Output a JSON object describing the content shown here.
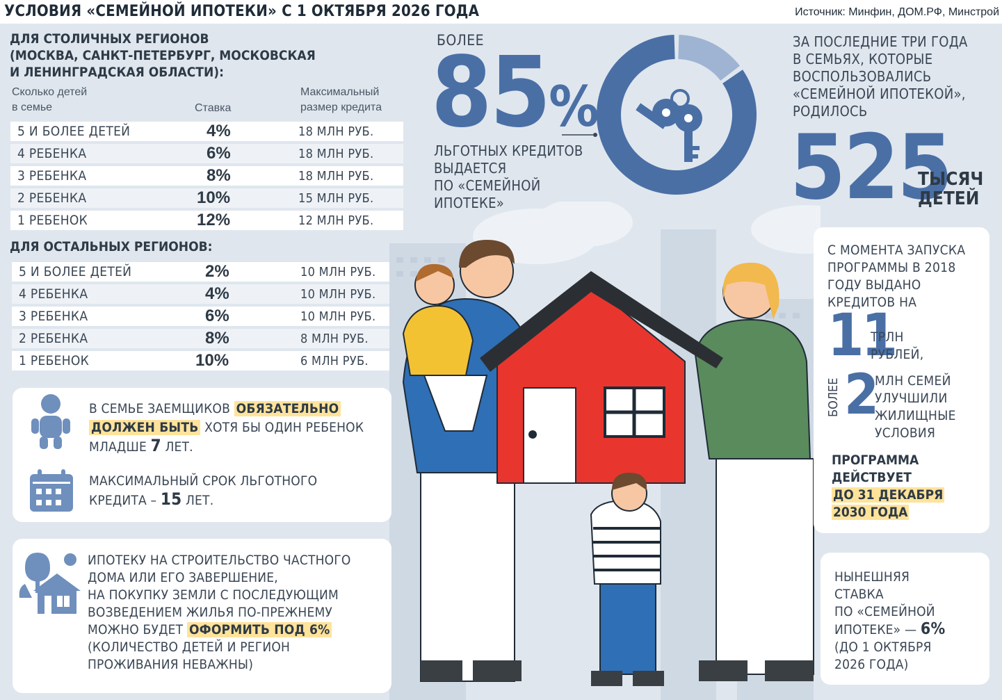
{
  "header": {
    "title": "УСЛОВИЯ «СЕМЕЙНОЙ ИПОТЕКИ» С 1 ОКТЯБРЯ 2026 ГОДА",
    "source": "Источник: Минфин, ДОМ.РФ, Минстрой"
  },
  "capital": {
    "title": "ДЛЯ СТОЛИЧНЫХ РЕГИОНОВ\n(МОСКВА, САНКТ-ПЕТЕРБУРГ, МОСКОВСКАЯ\nИ ЛЕНИНГРАДСКАЯ ОБЛАСТИ):",
    "col_kids": "Сколько детей\nв семье",
    "col_rate": "Ставка",
    "col_amount": "Максимальный\nразмер кредита",
    "rows": [
      {
        "kids": "5 И БОЛЕЕ ДЕТЕЙ",
        "rate": "4%",
        "amount": "18 МЛН РУБ."
      },
      {
        "kids": "4 РЕБЕНКА",
        "rate": "6%",
        "amount": "18 МЛН РУБ."
      },
      {
        "kids": "3 РЕБЕНКА",
        "rate": "8%",
        "amount": "18 МЛН РУБ."
      },
      {
        "kids": "2 РЕБЕНКА",
        "rate": "10%",
        "amount": "15 МЛН РУБ."
      },
      {
        "kids": "1 РЕБЕНОК",
        "rate": "12%",
        "amount": "12 МЛН РУБ."
      }
    ]
  },
  "other": {
    "title": "ДЛЯ ОСТАЛЬНЫХ РЕГИОНОВ:",
    "rows": [
      {
        "kids": "5 И БОЛЕЕ ДЕТЕЙ",
        "rate": "2%",
        "amount": "10 МЛН РУБ."
      },
      {
        "kids": "4 РЕБЕНКА",
        "rate": "4%",
        "amount": "10 МЛН РУБ."
      },
      {
        "kids": "3 РЕБЕНКА",
        "rate": "6%",
        "amount": "10 МЛН РУБ."
      },
      {
        "kids": "2 РЕБЕНКА",
        "rate": "8%",
        "amount": "8 МЛН РУБ."
      },
      {
        "kids": "1 РЕБЕНОК",
        "rate": "10%",
        "amount": "6 МЛН РУБ."
      }
    ]
  },
  "card_child": {
    "icon": "baby-icon",
    "t1": "В СЕМЬЕ ЗАЕМЩИКОВ ",
    "hl1": "ОБЯЗАТЕЛЬНО",
    "hl2": "ДОЛЖЕН БЫТЬ",
    "t2": " ХОТЯ БЫ ОДИН РЕБЕНОК",
    "t3": "МЛАДШЕ ",
    "age": "7",
    "t4": " ЛЕТ."
  },
  "card_term": {
    "icon": "calendar-icon",
    "t1": "МАКСИМАЛЬНЫЙ СРОК ЛЬГОТНОГО",
    "t2": "КРЕДИТА – ",
    "years": "15",
    "t3": " ЛЕТ."
  },
  "card_house": {
    "icon": "house-trees-icon",
    "l1": "ИПОТЕКУ НА СТРОИТЕЛЬСТВО ЧАСТНОГО",
    "l2": "ДОМА ИЛИ ЕГО ЗАВЕРШЕНИЕ,",
    "l3": "НА ПОКУПКУ ЗЕМЛИ С ПОСЛЕДУЮЩИМ",
    "l4": "ВОЗВЕДЕНИЕМ ЖИЛЬЯ ПО-ПРЕЖНЕМУ",
    "l5": "МОЖНО БУДЕТ ",
    "hl": "ОФОРМИТЬ ПОД 6%",
    "l6": "(КОЛИЧЕСТВО ДЕТЕЙ И РЕГИОН",
    "l7": "ПРОЖИВАНИЯ НЕВАЖНЫ)"
  },
  "stat85": {
    "pre": "БОЛЕЕ",
    "value": "85",
    "unit": "%",
    "label": "ЛЬГОТНЫХ КРЕДИТОВ\nВЫДАЕТСЯ\nПО «СЕМЕЙНОЙ\nИПОТЕКЕ»",
    "share": 0.85,
    "color_main": "#4a6fa5",
    "color_rest": "#9fb4d2"
  },
  "stat525": {
    "label": "ЗА ПОСЛЕДНИЕ ТРИ ГОДА\nВ СЕМЬЯХ, КОТОРЫЕ\nВОСПОЛЬЗОВАЛИСЬ\n«СЕМЕЙНОЙ ИПОТЕКОЙ»,\nРОДИЛОСЬ",
    "value": "525",
    "unit": "ТЫСЯЧ\nДЕТЕЙ"
  },
  "card_launch": {
    "label": "С МОМЕНТА ЗАПУСКА\nПРОГРАММЫ В 2018\nГОДУ ВЫДАНО\nКРЕДИТОВ НА",
    "trln": "11",
    "trln_unit": "ТРЛН\nРУБЛЕЙ,",
    "more": "БОЛЕЕ",
    "families": "2",
    "families_label": "МЛН СЕМЕЙ\nУЛУЧШИЛИ\nЖИЛИЩНЫЕ\nУСЛОВИЯ",
    "prog1": "ПРОГРАММА",
    "prog2": "ДЕЙСТВУЕТ",
    "prog3": "ДО 31 ДЕКАБРЯ",
    "prog4": "2030 ГОДА"
  },
  "card_current": {
    "l1": "НЫНЕШНЯЯ",
    "l2": "СТАВКА",
    "l3": "ПО «СЕМЕЙНОЙ",
    "l4": "ИПОТЕКЕ» — ",
    "rate": "6%",
    "l5": "(ДО 1 ОКТЯБРЯ",
    "l6": "2026 ГОДА)"
  },
  "colors": {
    "accent": "#4a6fa5",
    "highlight": "#ffe39a",
    "house": "#e8362f",
    "roof": "#2b2f33"
  }
}
